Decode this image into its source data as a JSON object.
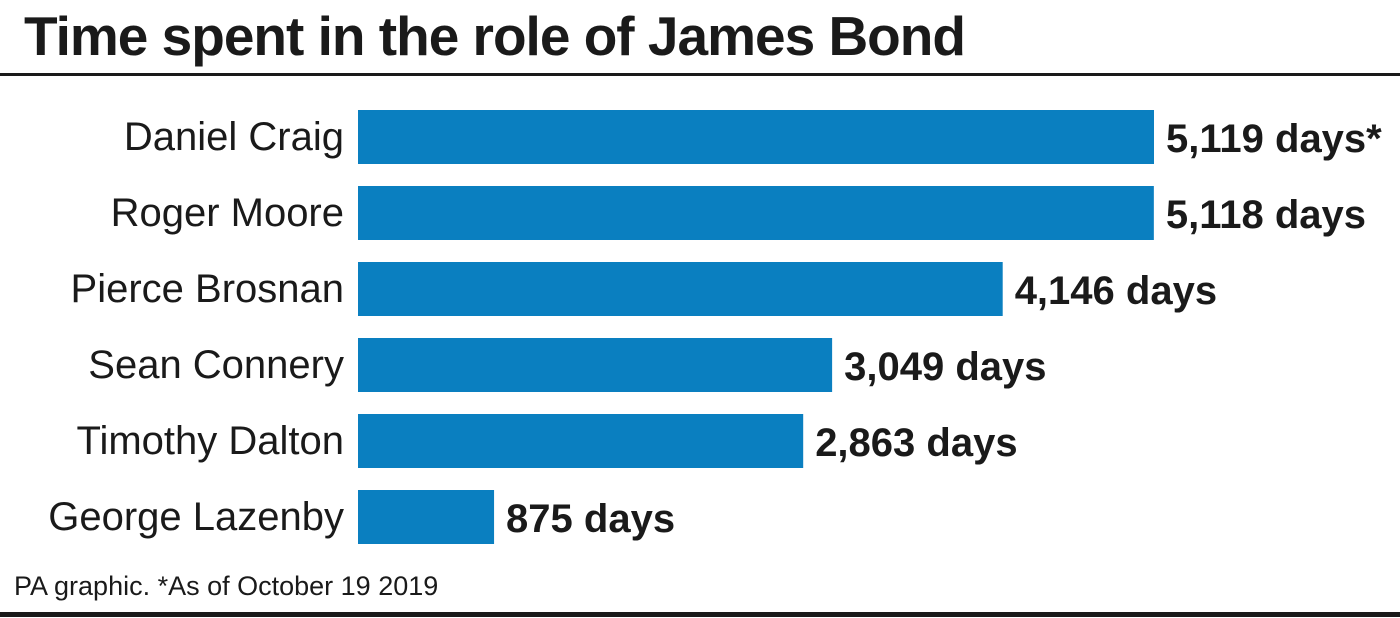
{
  "header": {
    "title": "Time spent in the role of James Bond"
  },
  "footer": {
    "note": "PA graphic. *As of October 19 2019"
  },
  "colors": {
    "bar": "#0a7fc0",
    "text": "#1a1a1a",
    "rule": "#1a1a1a"
  },
  "chart_data": {
    "type": "bar",
    "orientation": "horizontal",
    "title": "Time spent in the role of James Bond",
    "xlabel": "",
    "ylabel": "",
    "grid": false,
    "categories": [
      "Daniel Craig",
      "Roger Moore",
      "Pierce Brosnan",
      "Sean Connery",
      "Timothy Dalton",
      "George Lazenby"
    ],
    "values": [
      5119,
      5118,
      4146,
      3049,
      2863,
      875
    ],
    "value_labels": [
      "5,119 days*",
      "5,118 days",
      "4,146 days",
      "3,049 days",
      "2,863 days",
      "875 days"
    ],
    "xlim": [
      0,
      5119
    ]
  }
}
